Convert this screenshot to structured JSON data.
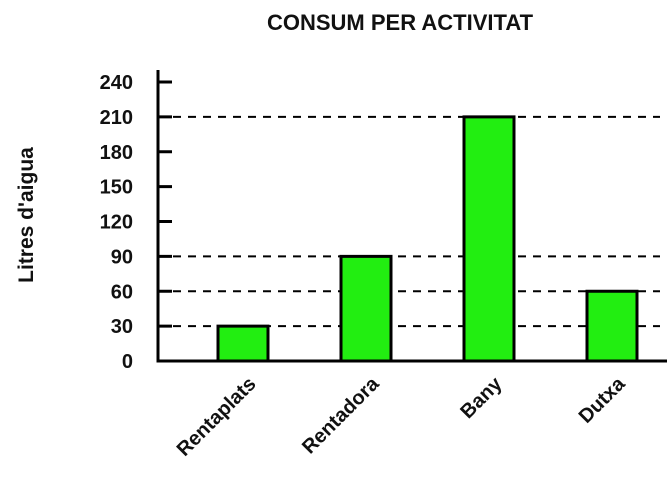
{
  "chart_data": {
    "type": "bar",
    "title": "CONSUM PER ACTIVITAT",
    "xlabel": "",
    "ylabel": "Litres d'aigua",
    "categories": [
      "Rentaplats",
      "Rentadora",
      "Bany",
      "Dutxa"
    ],
    "values": [
      30,
      90,
      210,
      60
    ],
    "yticks": [
      "0",
      "30",
      "60",
      "90",
      "120",
      "150",
      "180",
      "210",
      "240"
    ],
    "ylim": [
      0,
      240
    ],
    "grid": false,
    "reference_lines": [
      30,
      60,
      90,
      210
    ],
    "colors": {
      "bar": "#22ee11",
      "bar_outline": "#000000",
      "axis": "#000000",
      "dash": "#000000"
    }
  }
}
